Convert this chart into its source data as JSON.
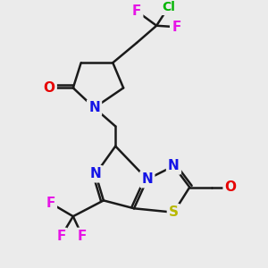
{
  "background_color": "#ebebeb",
  "atom_colors": {
    "C": "#1a1a1a",
    "N": "#1414e6",
    "O": "#e60000",
    "S": "#b8b800",
    "F": "#e614e6",
    "Cl": "#00b400"
  },
  "bond_color": "#1a1a1a",
  "bond_width": 1.8
}
